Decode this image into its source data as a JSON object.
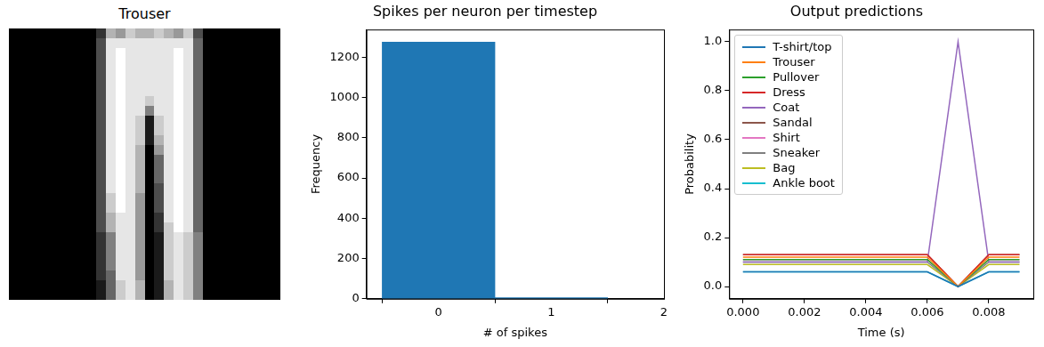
{
  "chart_data": [
    {
      "type": "image",
      "title": "Trouser",
      "tick_labels": false,
      "pixels": [
        [
          0,
          0,
          0,
          0,
          0,
          0,
          0,
          0,
          0,
          0.2,
          0.7,
          0.6,
          0.8,
          0.7,
          0.7,
          0.8,
          0.7,
          0.6,
          0.8,
          0.3,
          0,
          0,
          0,
          0,
          0,
          0,
          0,
          0
        ],
        [
          0,
          0,
          0,
          0,
          0,
          0,
          0,
          0,
          0,
          0.3,
          0.9,
          0.9,
          0.9,
          0.9,
          0.9,
          0.9,
          0.9,
          0.9,
          0.9,
          0.4,
          0,
          0,
          0,
          0,
          0,
          0,
          0,
          0
        ],
        [
          0,
          0,
          0,
          0,
          0,
          0,
          0,
          0,
          0,
          0.3,
          0.9,
          1.0,
          0.9,
          0.9,
          0.9,
          0.9,
          0.9,
          1.0,
          0.9,
          0.4,
          0,
          0,
          0,
          0,
          0,
          0,
          0,
          0
        ],
        [
          0,
          0,
          0,
          0,
          0,
          0,
          0,
          0,
          0,
          0.3,
          0.9,
          1.0,
          0.9,
          0.9,
          0.9,
          0.9,
          0.9,
          1.0,
          0.9,
          0.4,
          0,
          0,
          0,
          0,
          0,
          0,
          0,
          0
        ],
        [
          0,
          0,
          0,
          0,
          0,
          0,
          0,
          0,
          0,
          0.3,
          0.9,
          1.0,
          0.9,
          0.9,
          0.9,
          0.9,
          0.9,
          1.0,
          0.9,
          0.4,
          0,
          0,
          0,
          0,
          0,
          0,
          0,
          0
        ],
        [
          0,
          0,
          0,
          0,
          0,
          0,
          0,
          0,
          0,
          0.3,
          0.9,
          1.0,
          0.9,
          0.9,
          0.9,
          0.9,
          0.9,
          1.0,
          0.9,
          0.4,
          0,
          0,
          0,
          0,
          0,
          0,
          0,
          0
        ],
        [
          0,
          0,
          0,
          0,
          0,
          0,
          0,
          0,
          0,
          0.3,
          0.9,
          1.0,
          0.9,
          0.9,
          0.9,
          0.9,
          0.9,
          1.0,
          0.9,
          0.4,
          0,
          0,
          0,
          0,
          0,
          0,
          0,
          0
        ],
        [
          0,
          0,
          0,
          0,
          0,
          0,
          0,
          0,
          0,
          0.3,
          0.9,
          1.0,
          0.9,
          0.9,
          0.8,
          0.9,
          0.9,
          1.0,
          0.9,
          0.4,
          0,
          0,
          0,
          0,
          0,
          0,
          0,
          0
        ],
        [
          0,
          0,
          0,
          0,
          0,
          0,
          0,
          0,
          0,
          0.3,
          0.9,
          1.0,
          0.9,
          0.9,
          0.5,
          0.9,
          0.9,
          1.0,
          0.9,
          0.4,
          0,
          0,
          0,
          0,
          0,
          0,
          0,
          0
        ],
        [
          0,
          0,
          0,
          0,
          0,
          0,
          0,
          0,
          0,
          0.3,
          0.9,
          1.0,
          0.9,
          0.8,
          0.1,
          0.8,
          0.9,
          1.0,
          0.9,
          0.4,
          0,
          0,
          0,
          0,
          0,
          0,
          0,
          0
        ],
        [
          0,
          0,
          0,
          0,
          0,
          0,
          0,
          0,
          0,
          0.3,
          0.9,
          1.0,
          0.9,
          0.8,
          0.1,
          0.8,
          0.9,
          1.0,
          0.9,
          0.4,
          0,
          0,
          0,
          0,
          0,
          0,
          0,
          0
        ],
        [
          0,
          0,
          0,
          0,
          0,
          0,
          0,
          0,
          0,
          0.3,
          0.9,
          1.0,
          0.9,
          0.8,
          0.1,
          0.7,
          0.9,
          1.0,
          0.9,
          0.4,
          0,
          0,
          0,
          0,
          0,
          0,
          0,
          0
        ],
        [
          0,
          0,
          0,
          0,
          0,
          0,
          0,
          0,
          0,
          0.3,
          0.9,
          1.0,
          0.9,
          0.7,
          0.0,
          0.6,
          0.9,
          1.0,
          0.9,
          0.4,
          0,
          0,
          0,
          0,
          0,
          0,
          0,
          0
        ],
        [
          0,
          0,
          0,
          0,
          0,
          0,
          0,
          0,
          0,
          0.3,
          0.9,
          1.0,
          0.9,
          0.7,
          0.0,
          0.4,
          0.9,
          1.0,
          0.9,
          0.4,
          0,
          0,
          0,
          0,
          0,
          0,
          0,
          0
        ],
        [
          0,
          0,
          0,
          0,
          0,
          0,
          0,
          0,
          0,
          0.3,
          0.9,
          1.0,
          0.9,
          0.7,
          0.0,
          0.4,
          0.9,
          1.0,
          0.9,
          0.4,
          0,
          0,
          0,
          0,
          0,
          0,
          0,
          0
        ],
        [
          0,
          0,
          0,
          0,
          0,
          0,
          0,
          0,
          0,
          0.3,
          0.9,
          1.0,
          0.9,
          0.7,
          0.0,
          0.4,
          0.9,
          1.0,
          0.9,
          0.4,
          0,
          0,
          0,
          0,
          0,
          0,
          0,
          0
        ],
        [
          0,
          0,
          0,
          0,
          0,
          0,
          0,
          0,
          0,
          0.3,
          0.9,
          1.0,
          0.9,
          0.7,
          0.0,
          0.3,
          0.9,
          1.0,
          0.9,
          0.4,
          0,
          0,
          0,
          0,
          0,
          0,
          0,
          0
        ],
        [
          0,
          0,
          0,
          0,
          0,
          0,
          0,
          0,
          0,
          0.3,
          0.8,
          1.0,
          0.9,
          0.6,
          0.0,
          0.3,
          0.9,
          1.0,
          0.9,
          0.4,
          0,
          0,
          0,
          0,
          0,
          0,
          0,
          0
        ],
        [
          0,
          0,
          0,
          0,
          0,
          0,
          0,
          0,
          0,
          0.3,
          0.8,
          1.0,
          0.9,
          0.6,
          0.0,
          0.3,
          0.9,
          1.0,
          0.9,
          0.4,
          0,
          0,
          0,
          0,
          0,
          0,
          0,
          0
        ],
        [
          0,
          0,
          0,
          0,
          0,
          0,
          0,
          0,
          0,
          0.3,
          0.7,
          0.9,
          0.9,
          0.6,
          0.0,
          0.2,
          0.9,
          1.0,
          0.9,
          0.4,
          0,
          0,
          0,
          0,
          0,
          0,
          0,
          0
        ],
        [
          0,
          0,
          0,
          0,
          0,
          0,
          0,
          0,
          0,
          0.3,
          0.7,
          0.9,
          0.9,
          0.6,
          0.0,
          0.2,
          0.8,
          1.0,
          0.9,
          0.4,
          0,
          0,
          0,
          0,
          0,
          0,
          0,
          0
        ],
        [
          0,
          0,
          0,
          0,
          0,
          0,
          0,
          0,
          0,
          0.2,
          0.5,
          0.9,
          0.9,
          0.6,
          0.0,
          0.1,
          0.8,
          0.9,
          0.8,
          0.5,
          0,
          0,
          0,
          0,
          0,
          0,
          0,
          0
        ],
        [
          0,
          0,
          0,
          0,
          0,
          0,
          0,
          0,
          0,
          0.2,
          0.5,
          0.9,
          0.9,
          0.6,
          0.0,
          0.1,
          0.8,
          0.9,
          0.8,
          0.5,
          0,
          0,
          0,
          0,
          0,
          0,
          0,
          0
        ],
        [
          0,
          0,
          0,
          0,
          0,
          0,
          0,
          0,
          0,
          0.2,
          0.5,
          0.9,
          0.9,
          0.6,
          0.0,
          0.1,
          0.8,
          0.9,
          0.8,
          0.5,
          0,
          0,
          0,
          0,
          0,
          0,
          0,
          0
        ],
        [
          0,
          0,
          0,
          0,
          0,
          0,
          0,
          0,
          0,
          0.2,
          0.5,
          0.9,
          0.9,
          0.6,
          0.0,
          0.1,
          0.8,
          0.9,
          0.8,
          0.5,
          0,
          0,
          0,
          0,
          0,
          0,
          0,
          0
        ],
        [
          0,
          0,
          0,
          0,
          0,
          0,
          0,
          0,
          0,
          0.2,
          0.4,
          0.9,
          0.9,
          0.6,
          0.0,
          0.1,
          0.8,
          0.9,
          0.8,
          0.5,
          0,
          0,
          0,
          0,
          0,
          0,
          0,
          0
        ],
        [
          0,
          0,
          0,
          0,
          0,
          0,
          0,
          0,
          0,
          0.1,
          0.4,
          0.8,
          0.9,
          0.7,
          0.0,
          0.1,
          0.7,
          0.9,
          0.8,
          0.5,
          0,
          0,
          0,
          0,
          0,
          0,
          0,
          0
        ],
        [
          0,
          0,
          0,
          0,
          0,
          0,
          0,
          0,
          0,
          0.1,
          0.4,
          0.8,
          0.9,
          0.7,
          0.0,
          0.1,
          0.7,
          0.9,
          0.8,
          0.5,
          0,
          0,
          0,
          0,
          0,
          0,
          0,
          0
        ]
      ]
    },
    {
      "type": "histogram",
      "title": "Spikes per neuron per timestep",
      "x_label": "# of spikes",
      "y_label": "Frequency",
      "bins": [
        -0.5,
        0.5,
        1.5
      ],
      "values": [
        1275,
        5
      ],
      "color": "#1f77b4",
      "xlim": [
        -0.64,
        2.0
      ],
      "xticks": [
        0,
        1,
        2
      ],
      "ylim": [
        0,
        1338
      ],
      "yticks": [
        0,
        200,
        400,
        600,
        800,
        1000,
        1200
      ],
      "grid": false
    },
    {
      "type": "line",
      "title": "Output predictions",
      "x_label": "Time (s)",
      "y_label": "Probability",
      "x": [
        0,
        0.001,
        0.002,
        0.003,
        0.004,
        0.005,
        0.006,
        0.007,
        0.008,
        0.009
      ],
      "series": [
        {
          "name": "T-shirt/top",
          "color": "#1f77b4",
          "values": [
            0.06,
            0.06,
            0.06,
            0.06,
            0.06,
            0.06,
            0.06,
            0,
            0.06,
            0.06
          ]
        },
        {
          "name": "Trouser",
          "color": "#ff7f0e",
          "values": [
            0.12,
            0.12,
            0.12,
            0.12,
            0.12,
            0.12,
            0.12,
            0,
            0.12,
            0.12
          ]
        },
        {
          "name": "Pullover",
          "color": "#2ca02c",
          "values": [
            0.11,
            0.11,
            0.11,
            0.11,
            0.11,
            0.11,
            0.11,
            0,
            0.11,
            0.11
          ]
        },
        {
          "name": "Dress",
          "color": "#d62728",
          "values": [
            0.13,
            0.13,
            0.13,
            0.13,
            0.13,
            0.13,
            0.13,
            0,
            0.13,
            0.13
          ]
        },
        {
          "name": "Coat",
          "color": "#9467bd",
          "values": [
            0.1,
            0.1,
            0.1,
            0.1,
            0.1,
            0.1,
            0.1,
            1.0,
            0.1,
            0.1
          ]
        },
        {
          "name": "Sandal",
          "color": "#8c564b",
          "values": [
            0.13,
            0.13,
            0.13,
            0.13,
            0.13,
            0.13,
            0.13,
            0,
            0.13,
            0.13
          ]
        },
        {
          "name": "Shirt",
          "color": "#e377c2",
          "values": [
            0.11,
            0.11,
            0.11,
            0.11,
            0.11,
            0.11,
            0.11,
            0,
            0.11,
            0.11
          ]
        },
        {
          "name": "Sneaker",
          "color": "#7f7f7f",
          "values": [
            0.1,
            0.1,
            0.1,
            0.1,
            0.1,
            0.1,
            0.1,
            0,
            0.1,
            0.1
          ]
        },
        {
          "name": "Bag",
          "color": "#bcbd22",
          "values": [
            0.09,
            0.09,
            0.09,
            0.09,
            0.09,
            0.09,
            0.09,
            0,
            0.09,
            0.09
          ]
        },
        {
          "name": "Ankle boot",
          "color": "#17becf",
          "values": [
            0.06,
            0.06,
            0.06,
            0.06,
            0.06,
            0.06,
            0.06,
            0,
            0.06,
            0.06
          ]
        }
      ],
      "xlim": [
        -0.00045,
        0.00945
      ],
      "xticks": [
        {
          "value": 0,
          "label": "0.000"
        },
        {
          "value": 0.002,
          "label": "0.002"
        },
        {
          "value": 0.004,
          "label": "0.004"
        },
        {
          "value": 0.006,
          "label": "0.006"
        },
        {
          "value": 0.008,
          "label": "0.008"
        }
      ],
      "ylim": [
        -0.05,
        1.05
      ],
      "yticks": [
        {
          "value": 0,
          "label": "0.0"
        },
        {
          "value": 0.2,
          "label": "0.2"
        },
        {
          "value": 0.4,
          "label": "0.4"
        },
        {
          "value": 0.6,
          "label": "0.6"
        },
        {
          "value": 0.8,
          "label": "0.8"
        },
        {
          "value": 1.0,
          "label": "1.0"
        }
      ],
      "legend": "upper left",
      "grid": false
    }
  ]
}
